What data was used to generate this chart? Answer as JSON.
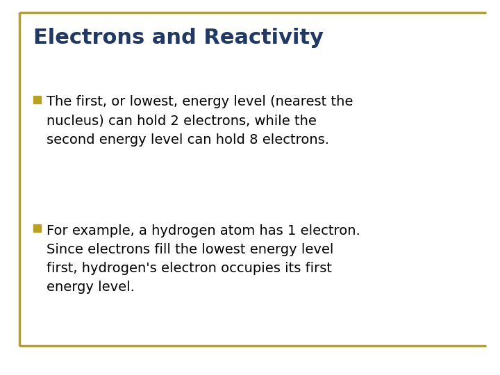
{
  "title": "Electrons and Reactivity",
  "title_color": "#1F3864",
  "title_fontsize": 22,
  "background_color": "#FFFFFF",
  "border_color": "#B8A020",
  "bullet_color": "#B8A020",
  "bullet_text_color": "#000000",
  "bullet_fontsize": 14,
  "bullet1": "The first, or lowest, energy level (nearest the\nnucleus) can hold 2 electrons, while the\nsecond energy level can hold 8 electrons.",
  "bullet2": "For example, a hydrogen atom has 1 electron.\nSince electrons fill the lowest energy level\nfirst, hydrogen's electron occupies its first\nenergy level."
}
